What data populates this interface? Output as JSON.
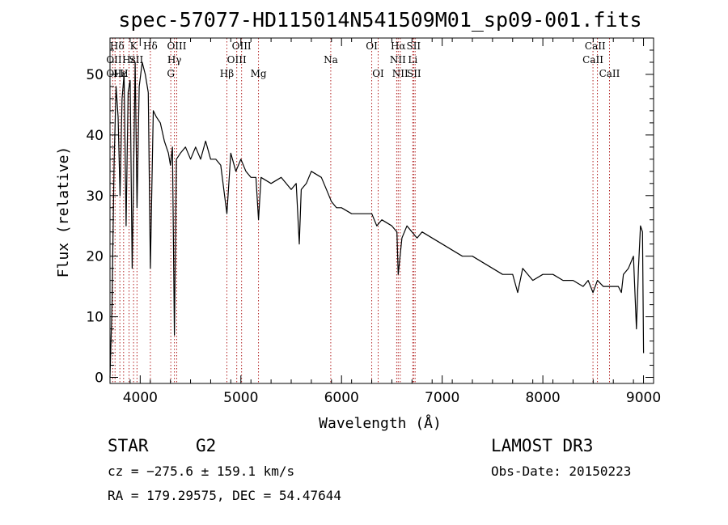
{
  "chart_data": {
    "type": "line",
    "title": "spec-57077-HD115014N541509M01_sp09-001.fits",
    "xlabel": "Wavelength (Å)",
    "ylabel": "Flux (relative)",
    "xlim": [
      3700,
      9100
    ],
    "ylim": [
      -1,
      56
    ],
    "xticks": [
      4000,
      5000,
      6000,
      7000,
      8000,
      9000
    ],
    "yticks": [
      0,
      10,
      20,
      30,
      40,
      50
    ],
    "series": [
      {
        "name": "flux",
        "x": [
          3700,
          3720,
          3740,
          3760,
          3780,
          3800,
          3820,
          3840,
          3860,
          3880,
          3900,
          3920,
          3934,
          3950,
          3968,
          3990,
          4020,
          4050,
          4080,
          4101,
          4130,
          4160,
          4200,
          4240,
          4280,
          4300,
          4320,
          4340,
          4360,
          4400,
          4450,
          4500,
          4550,
          4600,
          4650,
          4700,
          4750,
          4800,
          4861,
          4900,
          4950,
          5000,
          5050,
          5100,
          5150,
          5175,
          5200,
          5300,
          5400,
          5500,
          5550,
          5580,
          5600,
          5650,
          5700,
          5800,
          5850,
          5900,
          5950,
          6000,
          6100,
          6200,
          6300,
          6350,
          6400,
          6500,
          6550,
          6563,
          6600,
          6650,
          6700,
          6750,
          6800,
          6900,
          7000,
          7100,
          7200,
          7300,
          7400,
          7500,
          7600,
          7700,
          7750,
          7800,
          7900,
          8000,
          8100,
          8200,
          8300,
          8400,
          8450,
          8498,
          8542,
          8600,
          8662,
          8700,
          8750,
          8780,
          8800,
          8850,
          8900,
          8930,
          8950,
          8970,
          8990,
          9000
        ],
        "y": [
          0,
          12,
          35,
          48,
          43,
          30,
          46,
          50,
          25,
          47,
          49,
          18,
          33,
          52,
          28,
          48,
          52,
          50,
          47,
          18,
          44,
          43,
          42,
          39,
          37,
          35,
          38,
          7,
          36,
          37,
          38,
          36,
          38,
          36,
          39,
          36,
          36,
          35,
          27,
          37,
          34,
          36,
          34,
          33,
          33,
          26,
          33,
          32,
          33,
          31,
          32,
          22,
          31,
          32,
          34,
          33,
          31,
          29,
          28,
          28,
          27,
          27,
          27,
          25,
          26,
          25,
          24,
          17,
          23,
          25,
          24,
          23,
          24,
          23,
          22,
          21,
          20,
          20,
          19,
          18,
          17,
          17,
          14,
          18,
          16,
          17,
          17,
          16,
          16,
          15,
          16,
          14,
          16,
          15,
          15,
          15,
          15,
          14,
          17,
          18,
          20,
          8,
          18,
          25,
          24,
          4
        ]
      }
    ],
    "lines_row1": [
      "Hδ",
      "K",
      "Hδ",
      "OIII",
      "OIII",
      "OI",
      "Hα",
      "SII",
      "CaII"
    ],
    "lines_row2": [
      "OII",
      "Hε",
      "SII",
      "Hγ",
      "OIII",
      "Na",
      "NII",
      "Li",
      "CaII"
    ],
    "lines_row3": [
      "OII",
      "Hε",
      "H",
      "G",
      "Hβ",
      "Mg",
      "OI",
      "NII",
      "SII",
      "CaII"
    ],
    "line_markers": [
      3727,
      3750,
      3798,
      3835,
      3889,
      3934,
      3968,
      4101,
      4304,
      4340,
      4363,
      4861,
      4959,
      5007,
      5175,
      5893,
      6300,
      6364,
      6548,
      6563,
      6583,
      6708,
      6716,
      6731,
      8498,
      8542,
      8662
    ]
  },
  "info": {
    "class_label": "STAR",
    "subclass": "G2",
    "survey": "LAMOST DR3",
    "redshift": "cz = −275.6 ± 159.1 km/s",
    "obs_date": "Obs-Date: 20150223",
    "coords": "RA = 179.29575, DEC =  54.47644"
  }
}
